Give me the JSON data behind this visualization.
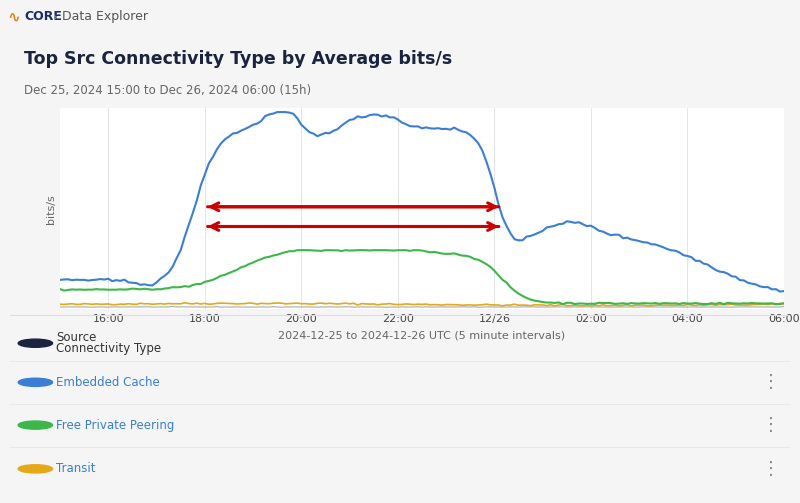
{
  "title": "Top Src Connectivity Type by Average bits/s",
  "subtitle": "Dec 25, 2024 15:00 to Dec 26, 2024 06:00 (15h)",
  "xlabel": "2024-12-25 to 2024-12-26 UTC (5 minute intervals)",
  "ylabel": "bits/s",
  "xtick_labels": [
    "16:00",
    "18:00",
    "20:00",
    "22:00",
    "12/26",
    "02:00",
    "04:00",
    "06:00"
  ],
  "background_color": "#f5f5f5",
  "plot_bg_color": "#ffffff",
  "header_bg_color": "#eeeeee",
  "blue_color": "#3a7fd5",
  "green_color": "#3cb84a",
  "orange_color": "#e6a817",
  "red_arrow_color": "#cc0000",
  "nav_icon_color": "#e8821a",
  "nav_core_color": "#1a2b6b",
  "nav_sep_color": "#999999",
  "nav_explorer_color": "#555555",
  "title_color": "#1a2340",
  "subtitle_color": "#666666",
  "legend_dark_circle": "#1a2340",
  "legend_label_color": "#3a7fd5",
  "legend_text_color": "#333333",
  "tick_color": "#444444",
  "ylabel_color": "#666666",
  "xlabel_color": "#666666",
  "grid_color": "#e0e0e0",
  "sep_color": "#dddddd",
  "row_sep_color": "#e8e8e8",
  "dots_color": "#888888"
}
